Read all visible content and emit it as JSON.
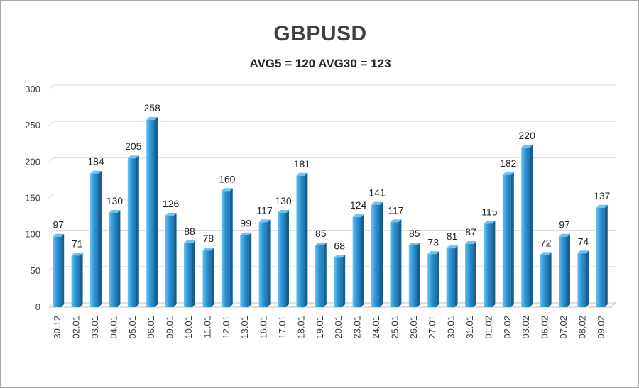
{
  "chart_data": {
    "type": "bar",
    "title": "GBPUSD",
    "subtitle": "AVG5 = 120 AVG30 = 123",
    "xlabel": "",
    "ylabel": "",
    "ylim": [
      0,
      300
    ],
    "yticks": [
      0,
      50,
      100,
      150,
      200,
      250,
      300
    ],
    "grid": true,
    "legend": "none",
    "categories": [
      "30.12",
      "02.01",
      "03.01",
      "04.01",
      "05.01",
      "06.01",
      "09.01",
      "10.01",
      "11.01",
      "12.01",
      "13.01",
      "16.01",
      "17.01",
      "18.01",
      "19.01",
      "20.01",
      "23.01",
      "24.01",
      "25.01",
      "26.01",
      "27.01",
      "30.01",
      "31.01",
      "01.02",
      "02.02",
      "03.02",
      "06.02",
      "07.02",
      "08.02",
      "09.02"
    ],
    "values": [
      97,
      71,
      184,
      130,
      205,
      258,
      126,
      88,
      78,
      160,
      99,
      117,
      130,
      181,
      85,
      68,
      124,
      141,
      117,
      85,
      73,
      81,
      87,
      115,
      182,
      220,
      72,
      97,
      74,
      137
    ],
    "colors": {
      "bar_light": "#6cc3f0",
      "bar_mid": "#2f98d8",
      "bar_dark": "#1b70ab",
      "bar_side": "#175f90",
      "grid": "#d9d9d9",
      "axis": "#bfbfbf"
    }
  }
}
